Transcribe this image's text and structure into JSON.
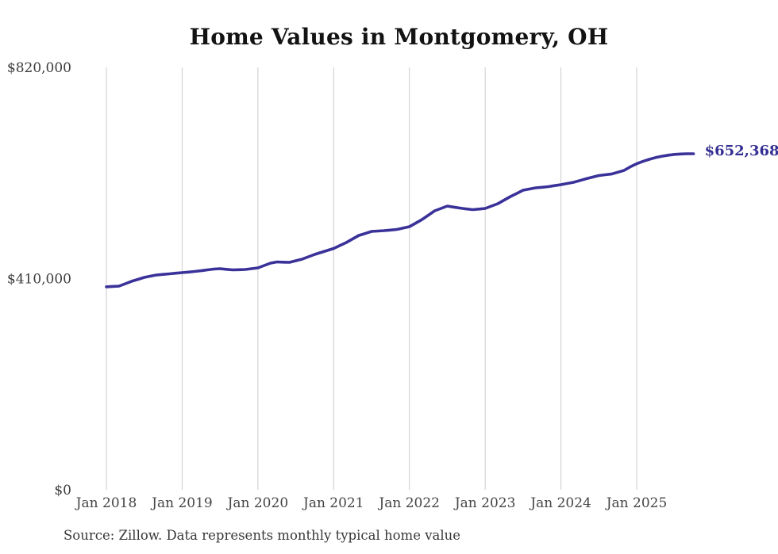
{
  "title": "Home Values in Montgomery, OH",
  "source_note": "Source: Zillow. Data represents monthly typical home value",
  "latest_value_label": "$652,368",
  "colors": {
    "line": "#3a3299",
    "latest_label": "#343093",
    "grid": "#cbcbcb",
    "axis_text": "#454545",
    "title_text": "#131313"
  },
  "chart_data": {
    "type": "line",
    "title": "Home Values in Montgomery, OH",
    "xlabel": "",
    "ylabel": "",
    "ylim": [
      0,
      820000
    ],
    "grid": "vertical-only",
    "legend": "none",
    "frequency": "monthly",
    "x_start": "Jan 2018",
    "x_tick_labels": [
      "Jan 2018",
      "Jan 2019",
      "Jan 2020",
      "Jan 2021",
      "Jan 2022",
      "Jan 2023",
      "Jan 2024",
      "Jan 2025"
    ],
    "x_tick_month_indices": [
      0,
      12,
      24,
      36,
      48,
      60,
      72,
      84
    ],
    "y_ticks": [
      {
        "value": 0,
        "label": "$0"
      },
      {
        "value": 410000,
        "label": "$410,000"
      },
      {
        "value": 820000,
        "label": "$820,000"
      }
    ],
    "end_annotation": "$652,368",
    "series": [
      {
        "name": "Typical home value",
        "monthly_values": [
          394000,
          394700,
          395400,
          400000,
          404700,
          408500,
          412300,
          414700,
          417000,
          418200,
          419300,
          420400,
          421500,
          422600,
          423800,
          425300,
          426900,
          428400,
          429200,
          428000,
          426900,
          427300,
          427700,
          429200,
          430800,
          435400,
          440000,
          442300,
          441900,
          441500,
          444600,
          447700,
          452300,
          456900,
          460700,
          464600,
          468400,
          474200,
          480000,
          486900,
          493800,
          497600,
          501500,
          502300,
          503100,
          504200,
          505400,
          508100,
          510800,
          517700,
          524600,
          533100,
          541600,
          546200,
          550800,
          548800,
          546900,
          545300,
          543800,
          545000,
          546200,
          550800,
          555400,
          562300,
          569200,
          575300,
          581500,
          583800,
          586200,
          587300,
          588500,
          590400,
          592300,
          594600,
          596900,
          600300,
          603800,
          606900,
          610000,
          611500,
          613000,
          616500,
          620000,
          627000,
          633000,
          637500,
          641500,
          645000,
          647500,
          649500,
          651000,
          651900,
          652300,
          652368
        ]
      }
    ]
  }
}
